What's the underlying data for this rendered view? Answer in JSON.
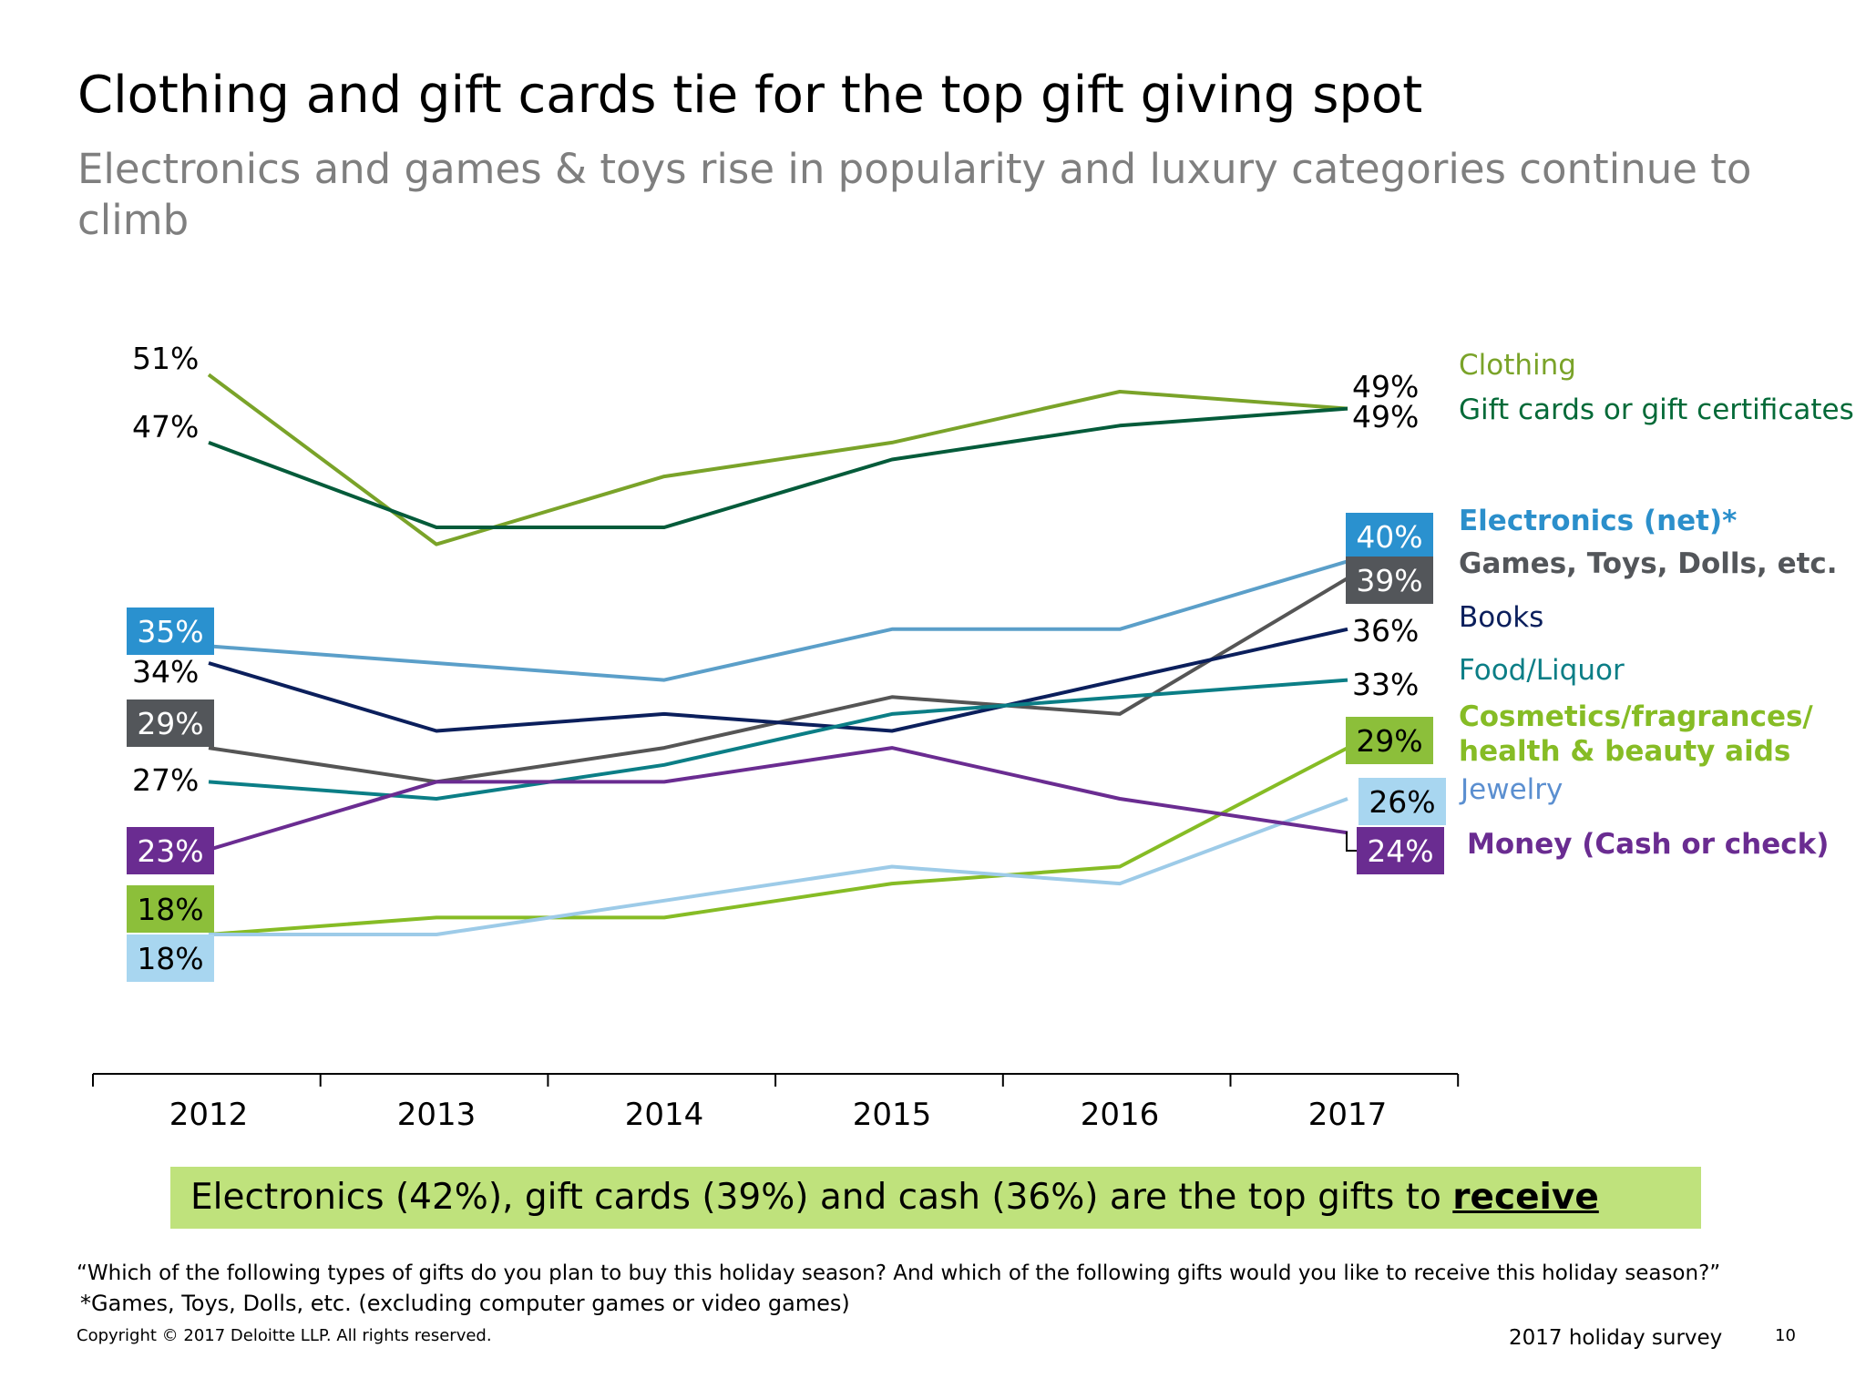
{
  "header": {
    "title": "Clothing and gift cards tie for the top gift giving spot",
    "subtitle": "Electronics and games & toys rise in popularity and luxury categories continue to climb"
  },
  "callout": {
    "text_before": "Electronics (42%), gift cards (39%) and cash (36%) are the top gifts to ",
    "emphasis": "receive"
  },
  "footnotes": {
    "question": "“Which of the following types of gifts do you plan to buy this holiday season?  And which of the following gifts would you like to receive this holiday season?”",
    "asterisk": "*Games, Toys, Dolls, etc. (excluding computer games or video games)"
  },
  "footer": {
    "copyright": "Copyright © 2017 Deloitte LLP. All rights reserved.",
    "survey": "2017 holiday survey",
    "page": "10"
  },
  "chart_data": {
    "type": "line",
    "x": [
      "2012",
      "2013",
      "2014",
      "2015",
      "2016",
      "2017"
    ],
    "ylim": [
      10,
      55
    ],
    "grid": false,
    "legend": "right",
    "series": [
      {
        "name": "Clothing",
        "values": [
          51,
          41,
          45,
          47,
          50,
          49
        ],
        "color": "#7aa329",
        "label_color": "#7aa329",
        "bold": false,
        "start_label": "51%",
        "end_label": "49%",
        "start_box": null,
        "end_box": null
      },
      {
        "name": "Gift cards or gift certificates",
        "values": [
          47,
          42,
          42,
          46,
          48,
          49
        ],
        "color": "#045b3a",
        "label_color": "#046a38",
        "bold": false,
        "start_label": "47%",
        "end_label": "49%",
        "start_box": null,
        "end_box": null
      },
      {
        "name": "Electronics (net)*",
        "values": [
          35,
          34,
          33,
          36,
          36,
          40
        ],
        "color": "#5b9fc9",
        "label_color": "#2b8fcb",
        "bold": true,
        "start_label": "35%",
        "end_label": "40%",
        "start_box": "#2a91cf",
        "end_box": "#2a91cf"
      },
      {
        "name": "Games, Toys, Dolls, etc.",
        "values": [
          29,
          27,
          29,
          32,
          31,
          39
        ],
        "color": "#555555",
        "label_color": "#53565a",
        "bold": true,
        "start_label": "29%",
        "end_label": "39%",
        "start_box": "#53565a",
        "end_box": "#53565a"
      },
      {
        "name": "Books",
        "values": [
          34,
          30,
          31,
          30,
          33,
          36
        ],
        "color": "#0b1f5c",
        "label_color": "#0b1f5c",
        "bold": false,
        "start_label": "34%",
        "end_label": "36%",
        "start_box": null,
        "end_box": null
      },
      {
        "name": "Food/Liquor",
        "values": [
          27,
          26,
          28,
          31,
          32,
          33
        ],
        "color": "#0b7e86",
        "label_color": "#0b7e86",
        "bold": false,
        "start_label": "27%",
        "end_label": "33%",
        "start_box": null,
        "end_box": null
      },
      {
        "name": "Cosmetics/fragrances/ health & beauty aids",
        "values": [
          18,
          19,
          19,
          21,
          22,
          29
        ],
        "color": "#86bc25",
        "label_color": "#86bc25",
        "bold": true,
        "start_label": "18%",
        "end_label": "29%",
        "start_box": "#8cbf3a",
        "end_box": "#8cbf3a"
      },
      {
        "name": "Jewelry",
        "values": [
          18,
          18,
          20,
          22,
          21,
          26
        ],
        "color": "#9dcbe8",
        "label_color": "#5b8fd0",
        "bold": false,
        "start_label": "18%",
        "end_label": "26%",
        "start_box": "#a8d6f0",
        "end_box": "#a8d6f0"
      },
      {
        "name": "Money (Cash or check)",
        "values": [
          23,
          27,
          27,
          29,
          26,
          24
        ],
        "color": "#6a2c91",
        "label_color": "#6a2c91",
        "bold": true,
        "start_label": "23%",
        "end_label": "24%",
        "start_box": "#6a2c91",
        "end_box": "#6a2c91"
      }
    ]
  }
}
